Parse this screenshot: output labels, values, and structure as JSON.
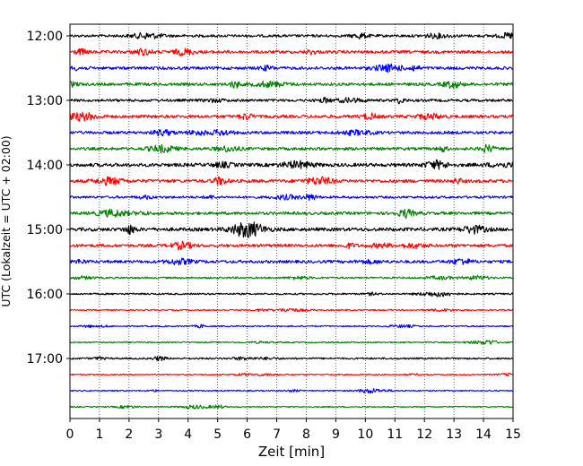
{
  "chart_data": {
    "type": "line",
    "title": "",
    "xlabel": "Zeit  [min]",
    "ylabel": "UTC (Lokalzeit = UTC + 02:00)",
    "xlim": [
      0,
      15
    ],
    "x_ticks": [
      "0",
      "1",
      "2",
      "3",
      "4",
      "5",
      "6",
      "7",
      "8",
      "9",
      "10",
      "11",
      "12",
      "13",
      "14",
      "15"
    ],
    "y_ticks": [
      "12:00",
      "13:00",
      "14:00",
      "15:00",
      "16:00",
      "17:00"
    ],
    "grid": "x-dotted",
    "trace_interval_minutes": 15,
    "color_cycle": [
      "#000000",
      "#ff0000",
      "#0000ff",
      "#008000"
    ],
    "series": [
      {
        "start": "12:00",
        "color": "#000000",
        "amplitude": 0.9
      },
      {
        "start": "12:15",
        "color": "#ff0000",
        "amplitude": 1.0
      },
      {
        "start": "12:30",
        "color": "#0000ff",
        "amplitude": 1.0
      },
      {
        "start": "12:45",
        "color": "#008000",
        "amplitude": 1.0
      },
      {
        "start": "13:00",
        "color": "#000000",
        "amplitude": 0.9
      },
      {
        "start": "13:15",
        "color": "#ff0000",
        "amplitude": 1.0
      },
      {
        "start": "13:30",
        "color": "#0000ff",
        "amplitude": 1.0
      },
      {
        "start": "13:45",
        "color": "#008000",
        "amplitude": 1.0
      },
      {
        "start": "14:00",
        "color": "#000000",
        "amplitude": 1.2
      },
      {
        "start": "14:15",
        "color": "#ff0000",
        "amplitude": 1.1
      },
      {
        "start": "14:30",
        "color": "#0000ff",
        "amplitude": 0.8
      },
      {
        "start": "14:45",
        "color": "#008000",
        "amplitude": 1.0
      },
      {
        "start": "15:00",
        "color": "#000000",
        "amplitude": 1.2
      },
      {
        "start": "15:15",
        "color": "#ff0000",
        "amplitude": 1.0
      },
      {
        "start": "15:30",
        "color": "#0000ff",
        "amplitude": 1.0
      },
      {
        "start": "15:45",
        "color": "#008000",
        "amplitude": 0.6
      },
      {
        "start": "16:00",
        "color": "#000000",
        "amplitude": 0.6
      },
      {
        "start": "16:15",
        "color": "#ff0000",
        "amplitude": 0.45
      },
      {
        "start": "16:30",
        "color": "#0000ff",
        "amplitude": 0.45
      },
      {
        "start": "16:45",
        "color": "#008000",
        "amplitude": 0.45
      },
      {
        "start": "17:00",
        "color": "#000000",
        "amplitude": 0.6
      },
      {
        "start": "17:15",
        "color": "#ff0000",
        "amplitude": 0.4
      },
      {
        "start": "17:30",
        "color": "#0000ff",
        "amplitude": 0.4
      },
      {
        "start": "17:45",
        "color": "#008000",
        "amplitude": 0.4
      }
    ]
  }
}
